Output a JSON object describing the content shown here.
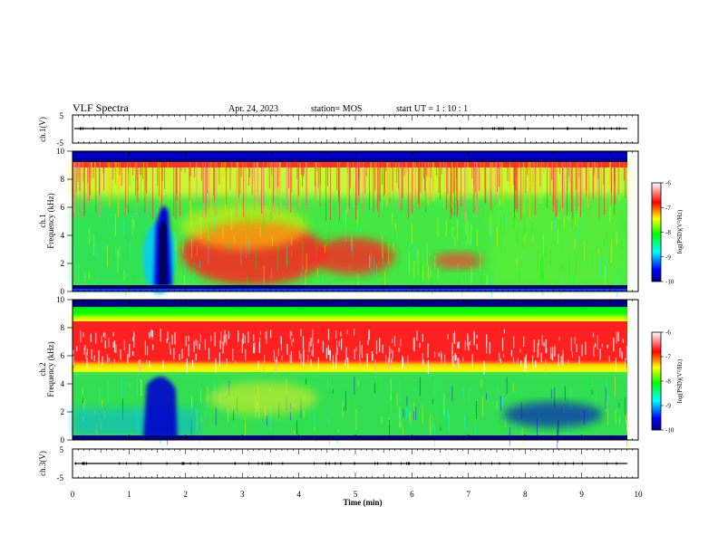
{
  "header": {
    "title": "VLF Spectra",
    "date": "Apr. 24, 2023",
    "station": "station= MOS",
    "start": "start  UT =  1 : 10 : 1"
  },
  "chart_data": [
    {
      "type": "line",
      "name": "ch1-waveform",
      "ylabel": "ch.1(V)",
      "ylim": [
        -5,
        5
      ],
      "yticks": [
        "5",
        "-5"
      ],
      "level": 0
    },
    {
      "type": "heatmap",
      "name": "ch1-spectrogram",
      "ylabel_line1": "ch.1",
      "ylabel_line2": "Frequency  (kHz)",
      "ylim": [
        0,
        10
      ],
      "yticks": [
        "0",
        "2",
        "4",
        "6",
        "8",
        "10"
      ],
      "colorbar": {
        "label": "log(PSD)(V²/Hz)",
        "range": [
          -10,
          -6
        ],
        "ticks": [
          "-6",
          "-7",
          "-8",
          "-9",
          "-10"
        ]
      }
    },
    {
      "type": "heatmap",
      "name": "ch2-spectrogram",
      "ylabel_line1": "ch.2",
      "ylabel_line2": "Frequency  (kHz)",
      "ylim": [
        0,
        10
      ],
      "yticks": [
        "0",
        "2",
        "4",
        "6",
        "8",
        "10"
      ],
      "colorbar": {
        "label": "log(PSD)(V²/Hz)",
        "range": [
          -10,
          -6
        ],
        "ticks": [
          "-6",
          "-7",
          "-8",
          "-9",
          "-10"
        ]
      }
    },
    {
      "type": "line",
      "name": "ch3-waveform",
      "ylabel": "ch.3(V)",
      "ylim": [
        -5,
        5
      ],
      "yticks": [
        "5",
        "-5"
      ],
      "level": 0
    }
  ],
  "xaxis": {
    "label": "Time  (min)",
    "range": [
      0,
      10
    ],
    "ticks": [
      "0",
      "1",
      "2",
      "3",
      "4",
      "5",
      "6",
      "7",
      "8",
      "9",
      "10"
    ]
  },
  "colors": {
    "colormap": [
      "#00007f",
      "#0000ff",
      "#00ffff",
      "#00ff00",
      "#ffff00",
      "#ff0000",
      "#ffffff"
    ]
  }
}
